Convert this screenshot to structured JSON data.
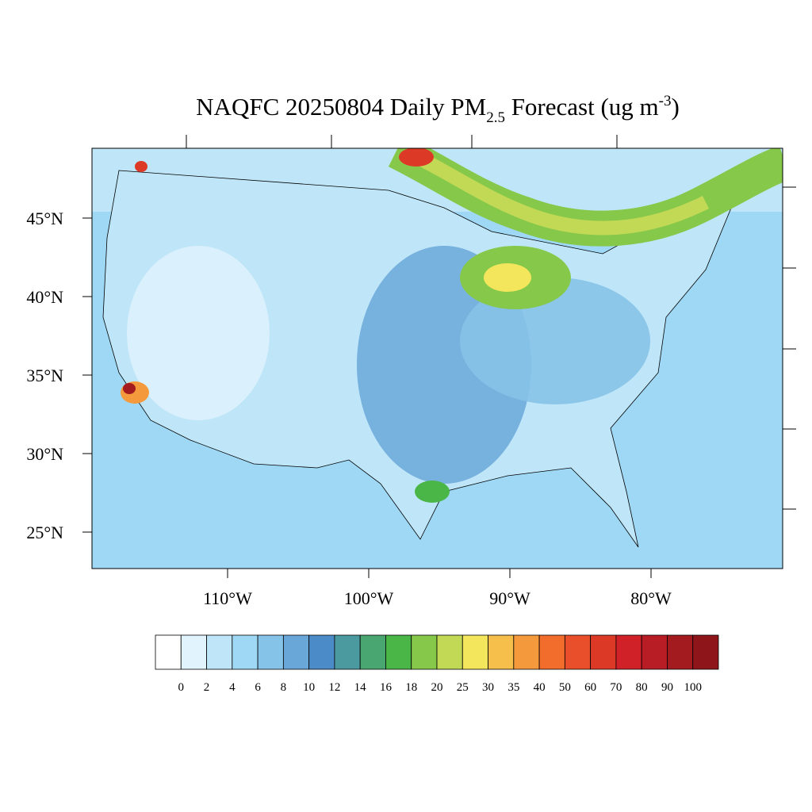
{
  "title": {
    "main": "NAQFC 20250804 Daily PM",
    "sub": "2.5",
    "mid": " Forecast (ug m",
    "sup": "-3",
    "end": ")"
  },
  "lat_labels": [
    "45°N",
    "40°N",
    "35°N",
    "30°N",
    "25°N"
  ],
  "lon_labels": [
    "110°W",
    "100°W",
    "90°W",
    "80°W"
  ],
  "colorbar": {
    "levels": [
      0,
      2,
      4,
      6,
      8,
      10,
      12,
      14,
      16,
      18,
      20,
      25,
      30,
      35,
      40,
      50,
      60,
      70,
      80,
      90,
      100
    ],
    "colors": [
      "#ffffff",
      "#e1f3fc",
      "#bfe6f8",
      "#9fd8f4",
      "#86c3e8",
      "#6aa7d9",
      "#4a8bc8",
      "#4b9aa0",
      "#49a670",
      "#4bb648",
      "#86c84a",
      "#c2d956",
      "#f4e65c",
      "#f6bf4b",
      "#f59a3c",
      "#f26c2c",
      "#e84f2a",
      "#dc3a27",
      "#d02028",
      "#b81c24",
      "#a31a1f",
      "#8e1519"
    ]
  }
}
